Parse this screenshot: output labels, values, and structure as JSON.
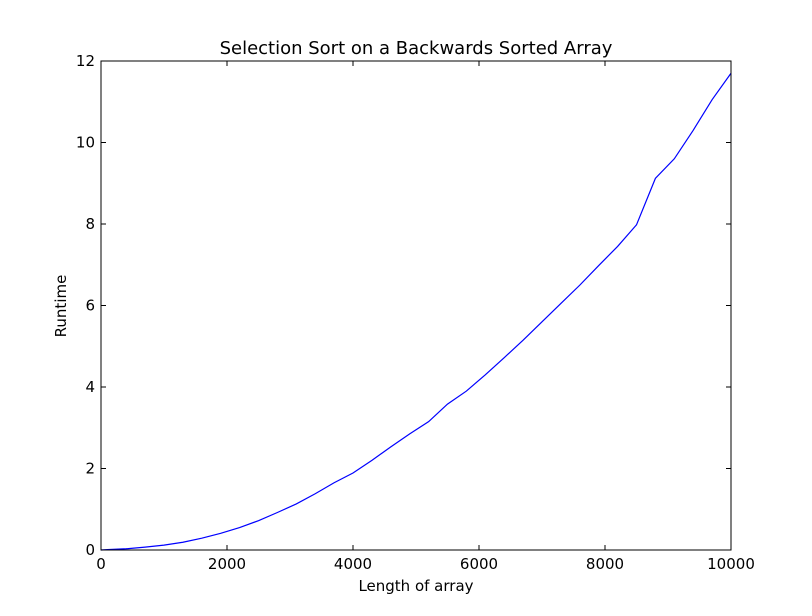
{
  "chart_data": {
    "type": "line",
    "title": "Selection Sort on a Backwards Sorted Array",
    "xlabel": "Length of array",
    "ylabel": "Runtime",
    "xlim": [
      0,
      10000
    ],
    "ylim": [
      0,
      12
    ],
    "xticks": [
      0,
      2000,
      4000,
      6000,
      8000,
      10000
    ],
    "yticks": [
      0,
      2,
      4,
      6,
      8,
      10,
      12
    ],
    "grid": false,
    "series": [
      {
        "color": "#0000ff",
        "x": [
          0,
          100,
          400,
          700,
          1000,
          1300,
          1600,
          1900,
          2200,
          2500,
          2800,
          3100,
          3400,
          3700,
          4000,
          4300,
          4600,
          4900,
          5200,
          5500,
          5800,
          6100,
          6400,
          6700,
          7000,
          7300,
          7600,
          7900,
          8200,
          8500,
          8800,
          9100,
          9400,
          9700,
          10000
        ],
        "y": [
          0.0,
          0.01,
          0.03,
          0.07,
          0.12,
          0.19,
          0.29,
          0.41,
          0.55,
          0.72,
          0.92,
          1.13,
          1.38,
          1.65,
          1.89,
          2.2,
          2.53,
          2.85,
          3.15,
          3.58,
          3.9,
          4.3,
          4.72,
          5.15,
          5.6,
          6.05,
          6.5,
          6.98,
          7.45,
          7.98,
          9.12,
          9.6,
          10.3,
          11.05,
          11.7
        ]
      }
    ]
  }
}
